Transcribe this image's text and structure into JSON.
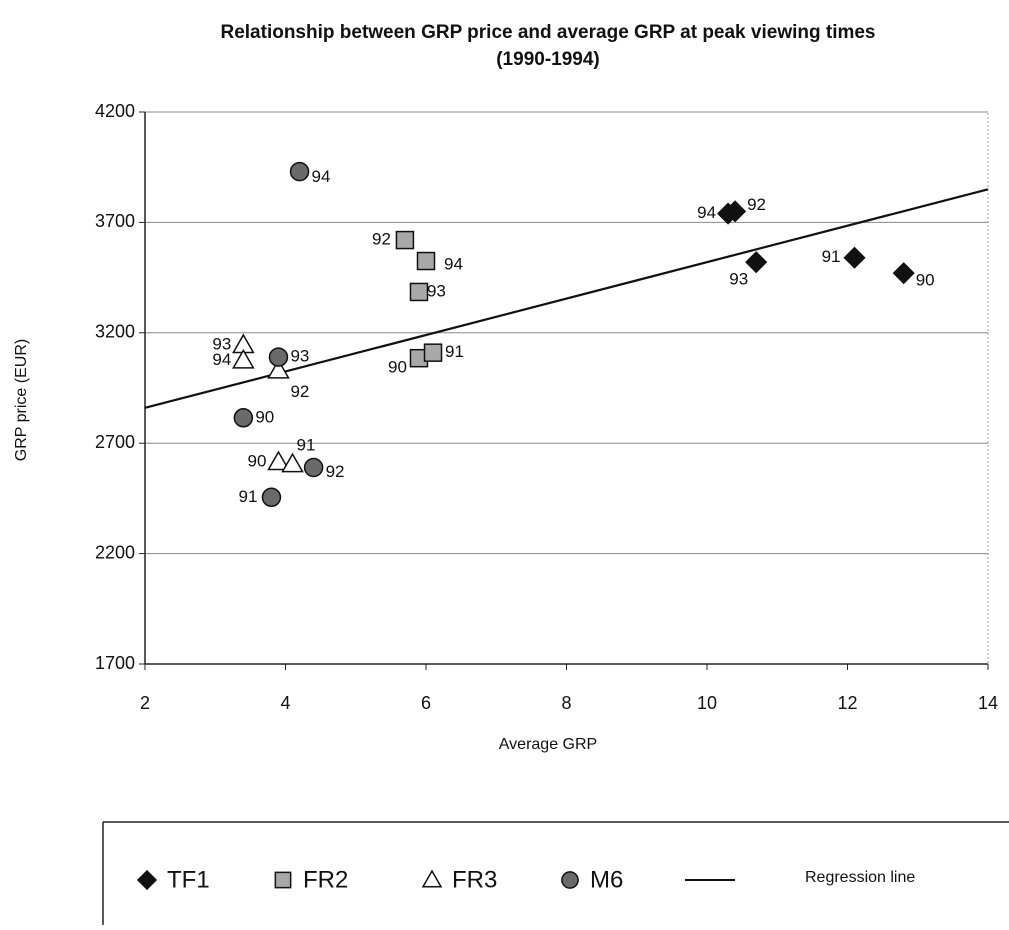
{
  "chart_data": {
    "type": "scatter",
    "title": "Relationship between GRP price and average GRP at peak viewing times",
    "subtitle": "(1990-1994)",
    "x_label": "Average GRP",
    "y_label": "GRP price (EUR)",
    "xlim": [
      2,
      14
    ],
    "ylim": [
      1700,
      4200
    ],
    "xticks": [
      2,
      4,
      6,
      8,
      10,
      12,
      14
    ],
    "yticks": [
      1700,
      2200,
      2700,
      3200,
      3700,
      4200
    ],
    "grid": true,
    "series": [
      {
        "name": "TF1",
        "marker": "diamond",
        "color": "#111111",
        "labels": [
          "90",
          "91",
          "92",
          "93",
          "94"
        ],
        "x": [
          12.8,
          12.1,
          10.4,
          10.7,
          10.3
        ],
        "values": [
          3470,
          3540,
          3750,
          3520,
          3740
        ]
      },
      {
        "name": "FR2",
        "marker": "square",
        "color": "#a8a8a8",
        "labels": [
          "90",
          "91",
          "92",
          "93",
          "94"
        ],
        "x": [
          5.9,
          6.1,
          5.7,
          5.9,
          6.0
        ],
        "values": [
          3085,
          3110,
          3620,
          3385,
          3525
        ]
      },
      {
        "name": "FR3",
        "marker": "triangle",
        "color": "#ffffff",
        "labels": [
          "90",
          "91",
          "92",
          "93",
          "94"
        ],
        "x": [
          3.9,
          4.1,
          3.9,
          3.4,
          3.4
        ],
        "values": [
          2615,
          2605,
          3030,
          3145,
          3075
        ]
      },
      {
        "name": "M6",
        "marker": "circle",
        "color": "#6a6a6a",
        "labels": [
          "90",
          "91",
          "92",
          "93",
          "94"
        ],
        "x": [
          3.4,
          3.8,
          4.4,
          3.9,
          4.2
        ],
        "values": [
          2815,
          2455,
          2590,
          3090,
          3930
        ]
      }
    ],
    "regression": {
      "name": "Regression line",
      "color": "#111111",
      "x": [
        2,
        14
      ],
      "values": [
        2860,
        3850
      ]
    }
  }
}
